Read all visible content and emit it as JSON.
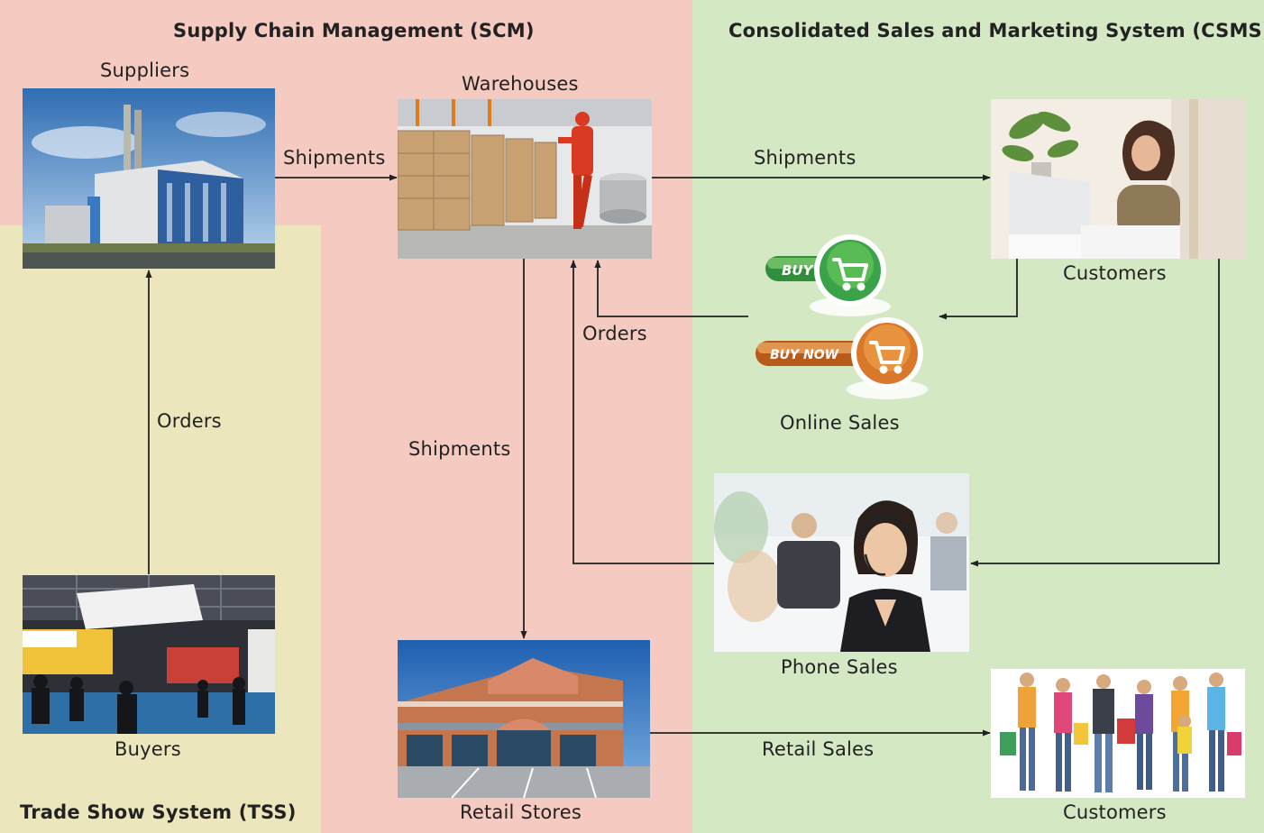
{
  "regions": {
    "scm": {
      "title": "Supply Chain Management (SCM)",
      "color": "#f5cac0"
    },
    "csms": {
      "title": "Consolidated Sales and Marketing System (CSMS)",
      "color": "#d4e8c4"
    },
    "tss": {
      "title": "Trade Show System (TSS)",
      "color": "#ece6bd"
    }
  },
  "nodes": {
    "suppliers": {
      "label": "Suppliers",
      "icon": "factory-photo"
    },
    "warehouses": {
      "label": "Warehouses",
      "icon": "warehouse-photo"
    },
    "customers_online": {
      "label": "Customers",
      "icon": "woman-laptop-photo"
    },
    "online_sales": {
      "label": "Online Sales",
      "buy_label": "BUY",
      "buy_now_label": "BUY NOW",
      "icon": "shopping-cart-icon"
    },
    "phone_sales": {
      "label": "Phone Sales",
      "icon": "call-center-photo"
    },
    "buyers": {
      "label": "Buyers",
      "icon": "trade-show-photo"
    },
    "retail_stores": {
      "label": "Retail Stores",
      "icon": "store-photo"
    },
    "customers_retail": {
      "label": "Customers",
      "icon": "shoppers-photo"
    }
  },
  "edges": {
    "suppliers_to_warehouses": "Shipments",
    "warehouses_to_customers": "Shipments",
    "sales_to_warehouses": "Orders",
    "buyers_to_suppliers": "Orders",
    "warehouses_to_retail": "Shipments",
    "retail_to_customers": "Retail Sales"
  },
  "colors": {
    "arrow": "#222222",
    "buy_green": "#3aa34a",
    "buy_now_orange": "#d9772a"
  }
}
